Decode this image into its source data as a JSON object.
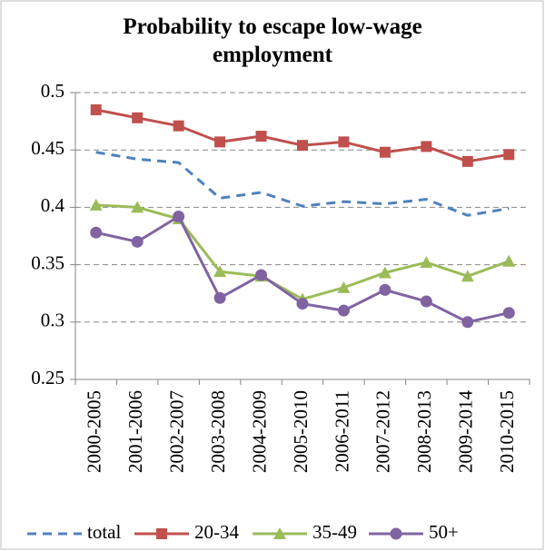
{
  "chart_data": {
    "type": "line",
    "title": "Probability to escape low-wage employment",
    "categories": [
      "2000-2005",
      "2001-2006",
      "2002-2007",
      "2003-2008",
      "2004-2009",
      "2005-2010",
      "2006-2011",
      "2007-2012",
      "2008-2013",
      "2009-2014",
      "2010-2015"
    ],
    "series": [
      {
        "name": "total",
        "color": "#4f81bd",
        "dash": true,
        "marker": "none",
        "values": [
          0.448,
          0.442,
          0.439,
          0.408,
          0.413,
          0.401,
          0.405,
          0.403,
          0.407,
          0.393,
          0.399
        ]
      },
      {
        "name": "20-34",
        "color": "#c0504d",
        "dash": false,
        "marker": "square",
        "values": [
          0.485,
          0.478,
          0.471,
          0.457,
          0.462,
          0.454,
          0.457,
          0.448,
          0.453,
          0.44,
          0.446
        ]
      },
      {
        "name": "35-49",
        "color": "#9bbb59",
        "dash": false,
        "marker": "triangle",
        "values": [
          0.402,
          0.4,
          0.39,
          0.344,
          0.34,
          0.32,
          0.33,
          0.343,
          0.352,
          0.34,
          0.353
        ]
      },
      {
        "name": "50+",
        "color": "#8064a2",
        "dash": false,
        "marker": "circle",
        "values": [
          0.378,
          0.37,
          0.392,
          0.321,
          0.341,
          0.316,
          0.31,
          0.328,
          0.318,
          0.3,
          0.308
        ]
      }
    ],
    "ylim": [
      0.25,
      0.5
    ],
    "yticks": [
      0.25,
      0.3,
      0.35,
      0.4,
      0.45,
      0.5
    ],
    "grid": true,
    "legend": "bottom"
  }
}
